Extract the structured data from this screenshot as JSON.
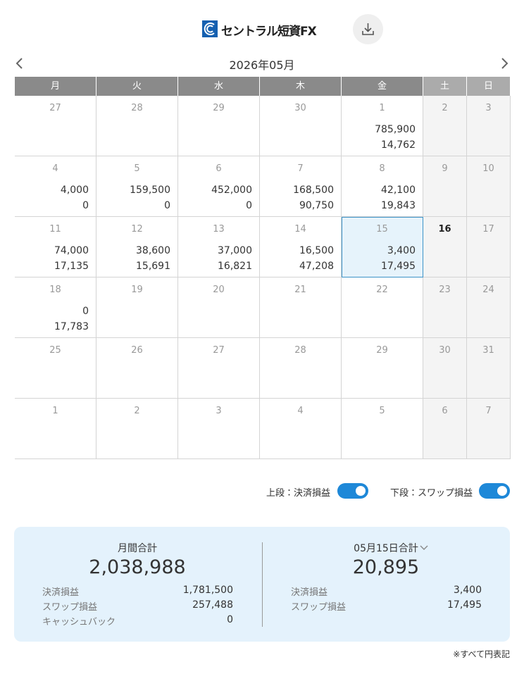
{
  "header": {
    "logo": "セントラル短資FX"
  },
  "calendar": {
    "month": "2026年05月",
    "weekdays": [
      "月",
      "火",
      "水",
      "木",
      "金",
      "土",
      "日"
    ],
    "weeks": [
      [
        {
          "day": "27"
        },
        {
          "day": "28"
        },
        {
          "day": "29"
        },
        {
          "day": "30"
        },
        {
          "day": "1",
          "top": "785,900",
          "bottom": "14,762"
        },
        {
          "day": "2"
        },
        {
          "day": "3"
        }
      ],
      [
        {
          "day": "4",
          "top": "4,000",
          "bottom": "0"
        },
        {
          "day": "5",
          "top": "159,500",
          "bottom": "0"
        },
        {
          "day": "6",
          "top": "452,000",
          "bottom": "0"
        },
        {
          "day": "7",
          "top": "168,500",
          "bottom": "90,750"
        },
        {
          "day": "8",
          "top": "42,100",
          "bottom": "19,843"
        },
        {
          "day": "9"
        },
        {
          "day": "10"
        }
      ],
      [
        {
          "day": "11",
          "top": "74,000",
          "bottom": "17,135"
        },
        {
          "day": "12",
          "top": "38,600",
          "bottom": "15,691"
        },
        {
          "day": "13",
          "top": "37,000",
          "bottom": "16,821"
        },
        {
          "day": "14",
          "top": "16,500",
          "bottom": "47,208"
        },
        {
          "day": "15",
          "top": "3,400",
          "bottom": "17,495"
        },
        {
          "day": "16"
        },
        {
          "day": "17"
        }
      ],
      [
        {
          "day": "18",
          "top": "0",
          "bottom": "17,783"
        },
        {
          "day": "19"
        },
        {
          "day": "20"
        },
        {
          "day": "21"
        },
        {
          "day": "22"
        },
        {
          "day": "23"
        },
        {
          "day": "24"
        }
      ],
      [
        {
          "day": "25"
        },
        {
          "day": "26"
        },
        {
          "day": "27"
        },
        {
          "day": "28"
        },
        {
          "day": "29"
        },
        {
          "day": "30"
        },
        {
          "day": "31"
        }
      ],
      [
        {
          "day": "1"
        },
        {
          "day": "2"
        },
        {
          "day": "3"
        },
        {
          "day": "4"
        },
        {
          "day": "5"
        },
        {
          "day": "6"
        },
        {
          "day": "7"
        }
      ]
    ]
  },
  "toggles": [
    "上段：決済損益",
    "下段：スワップ損益"
  ],
  "summary": {
    "monthly": {
      "title": "月間合計",
      "total": "2,038,988",
      "rows": [
        {
          "label": "決済損益",
          "value": "1,781,500"
        },
        {
          "label": "スワップ損益",
          "value": "257,488"
        },
        {
          "label": "キャッシュバック",
          "value": "0"
        }
      ]
    },
    "daily": {
      "title": "05月15日合計",
      "total": "20,895",
      "rows": [
        {
          "label": "決済損益",
          "value": "3,400"
        },
        {
          "label": "スワップ損益",
          "value": "17,495"
        }
      ]
    }
  },
  "footnote": "※すべて円表記"
}
